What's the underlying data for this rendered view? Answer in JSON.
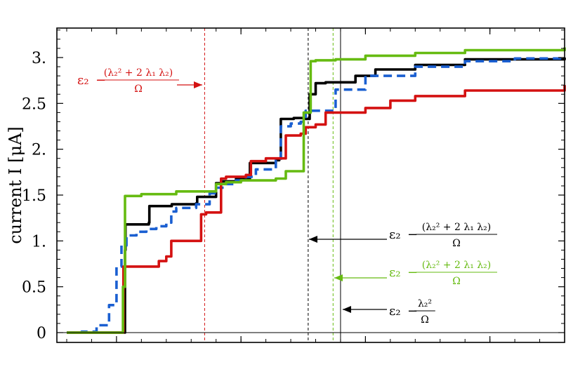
{
  "chart_data": {
    "type": "line",
    "title": "",
    "xlabel": "",
    "ylabel": "current I [μA]",
    "ylim": [
      0,
      3.3
    ],
    "xlim": [
      0,
      1
    ],
    "x_tick_values": [
      0.1,
      0.35,
      0.6,
      0.85
    ],
    "y_ticks": [
      {
        "value": 0,
        "label": "0"
      },
      {
        "value": 0.5,
        "label": "0.5"
      },
      {
        "value": 1.0,
        "label": "1."
      },
      {
        "value": 1.5,
        "label": "1.5"
      },
      {
        "value": 2.0,
        "label": "2."
      },
      {
        "value": 2.5,
        "label": "2.5"
      },
      {
        "value": 3.0,
        "label": "3."
      }
    ],
    "grid": false,
    "series": [
      {
        "color": "#000000",
        "dash": "solid",
        "x": [
          0,
          0.1,
          0.115,
          0.117,
          0.118,
          0.15,
          0.165,
          0.166,
          0.21,
          0.211,
          0.26,
          0.262,
          0.287,
          0.3,
          0.31,
          0.34,
          0.348,
          0.368,
          0.4,
          0.42,
          0.427,
          0.43,
          0.456,
          0.48,
          0.488,
          0.5,
          0.52,
          0.58,
          0.62,
          0.7,
          0.8,
          1.0
        ],
        "y": [
          0,
          0,
          0,
          0.9,
          1.18,
          1.18,
          1.2,
          1.38,
          1.38,
          1.4,
          1.41,
          1.48,
          1.48,
          1.63,
          1.65,
          1.68,
          1.68,
          1.85,
          1.85,
          1.88,
          1.9,
          2.33,
          2.34,
          2.33,
          2.6,
          2.72,
          2.73,
          2.8,
          2.87,
          2.92,
          2.98,
          3.0
        ]
      },
      {
        "color": "#1a5fd1",
        "dash": "dashed",
        "x": [
          0,
          0.03,
          0.06,
          0.085,
          0.1,
          0.11,
          0.12,
          0.14,
          0.16,
          0.18,
          0.2,
          0.21,
          0.22,
          0.26,
          0.287,
          0.3,
          0.32,
          0.34,
          0.36,
          0.38,
          0.42,
          0.43,
          0.45,
          0.47,
          0.48,
          0.54,
          0.6,
          0.7,
          0.8,
          0.9,
          1.0
        ],
        "y": [
          0,
          0.01,
          0.08,
          0.3,
          0.72,
          0.95,
          1.06,
          1.1,
          1.13,
          1.16,
          1.2,
          1.32,
          1.36,
          1.4,
          1.52,
          1.58,
          1.62,
          1.66,
          1.7,
          1.78,
          1.88,
          2.25,
          2.28,
          2.3,
          2.42,
          2.65,
          2.8,
          2.9,
          2.96,
          2.99,
          3.0
        ]
      },
      {
        "color": "#d41111",
        "dash": "solid",
        "x": [
          0,
          0.112,
          0.114,
          0.175,
          0.185,
          0.2,
          0.21,
          0.26,
          0.27,
          0.28,
          0.31,
          0.32,
          0.36,
          0.37,
          0.4,
          0.44,
          0.47,
          0.48,
          0.5,
          0.52,
          0.6,
          0.65,
          0.7,
          0.8,
          1.0
        ],
        "y": [
          0,
          0,
          0.72,
          0.72,
          0.78,
          0.83,
          1.0,
          1.0,
          1.29,
          1.31,
          1.68,
          1.7,
          1.72,
          1.87,
          1.9,
          2.15,
          2.17,
          2.24,
          2.27,
          2.4,
          2.45,
          2.53,
          2.58,
          2.64,
          2.7
        ]
      },
      {
        "color": "#66bb11",
        "dash": "solid",
        "x": [
          0,
          0.1,
          0.113,
          0.117,
          0.118,
          0.15,
          0.22,
          0.3,
          0.32,
          0.35,
          0.42,
          0.44,
          0.475,
          0.476,
          0.49,
          0.5,
          0.54,
          0.6,
          0.7,
          0.8,
          1.0
        ],
        "y": [
          0,
          0,
          0.5,
          1.49,
          1.49,
          1.51,
          1.54,
          1.62,
          1.64,
          1.66,
          1.68,
          1.76,
          1.76,
          2.4,
          2.96,
          2.97,
          2.98,
          3.02,
          3.05,
          3.08,
          3.11
        ]
      }
    ],
    "vlines": [
      {
        "x": 0.277,
        "color": "#d41111"
      },
      {
        "x": 0.485,
        "color": "#000000"
      },
      {
        "x": 0.535,
        "color": "#66bb11"
      },
      {
        "x": 0.55,
        "color": "#000000",
        "style": "solid"
      }
    ],
    "annotations": [
      {
        "color": "#d41111",
        "epsilon": "ε₂",
        "numerator": "(λ₂² + 2 λ₁ λ₂)",
        "denominator": "Ω"
      },
      {
        "color": "#000000",
        "epsilon": "ε₂",
        "numerator": "(λ₂² + 2 λ₁ λ₂)",
        "denominator": "Ω"
      },
      {
        "color": "#66bb11",
        "epsilon": "ε₂",
        "numerator": "(λ₂² + 2 λ₁ λ₂)",
        "denominator": "Ω"
      },
      {
        "color": "#000000",
        "epsilon": "ε₂",
        "numerator": "λ₂²",
        "denominator": "Ω"
      }
    ]
  }
}
